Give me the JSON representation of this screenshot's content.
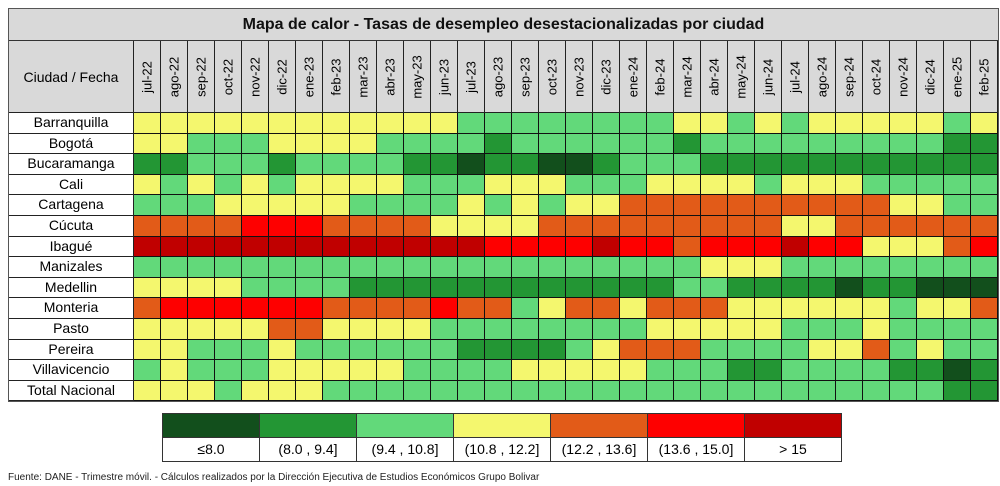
{
  "chart_data": {
    "type": "heatmap",
    "title": "Mapa de calor - Tasas de desempleo desestacionalizadas por ciudad",
    "corner_label": "Ciudad / Fecha",
    "columns": [
      "jul-22",
      "ago-22",
      "sep-22",
      "oct-22",
      "nov-22",
      "dic-22",
      "ene-23",
      "feb-23",
      "mar-23",
      "abr-23",
      "may-23",
      "jun-23",
      "jul-23",
      "ago-23",
      "sep-23",
      "oct-23",
      "nov-23",
      "dic-23",
      "ene-24",
      "feb-24",
      "mar-24",
      "abr-24",
      "may-24",
      "jun-24",
      "jul-24",
      "ago-24",
      "sep-24",
      "oct-24",
      "nov-24",
      "dic-24",
      "ene-25",
      "feb-25"
    ],
    "legend": [
      {
        "label": "≤8.0",
        "color": "#124f1c"
      },
      {
        "label": "(8.0 , 9.4]",
        "color": "#239634"
      },
      {
        "label": "(9.4 , 10.8]",
        "color": "#62d97a"
      },
      {
        "label": "(10.8 , 12.2]",
        "color": "#f4f76e"
      },
      {
        "label": "(12.2 , 13.6]",
        "color": "#e25b18"
      },
      {
        "label": "(13.6 , 15.0]",
        "color": "#fe0000"
      },
      {
        "label": "> 15",
        "color": "#c00000"
      }
    ],
    "rows": [
      {
        "city": "Barranquilla",
        "levels": [
          3,
          3,
          3,
          3,
          3,
          3,
          3,
          3,
          3,
          3,
          3,
          3,
          2,
          2,
          2,
          2,
          2,
          2,
          2,
          2,
          3,
          3,
          2,
          3,
          2,
          3,
          3,
          3,
          3,
          3,
          2,
          3
        ]
      },
      {
        "city": "Bogotá",
        "levels": [
          3,
          3,
          2,
          2,
          2,
          3,
          3,
          3,
          3,
          2,
          2,
          2,
          2,
          1,
          2,
          2,
          2,
          2,
          2,
          2,
          1,
          2,
          2,
          2,
          2,
          2,
          2,
          2,
          2,
          2,
          1,
          1
        ]
      },
      {
        "city": "Bucaramanga",
        "levels": [
          1,
          1,
          2,
          2,
          2,
          1,
          2,
          2,
          2,
          2,
          1,
          1,
          0,
          1,
          1,
          0,
          0,
          1,
          2,
          2,
          2,
          1,
          1,
          1,
          1,
          1,
          1,
          1,
          1,
          1,
          1,
          1
        ]
      },
      {
        "city": "Cali",
        "levels": [
          3,
          2,
          3,
          2,
          3,
          2,
          3,
          3,
          3,
          3,
          2,
          2,
          2,
          3,
          3,
          3,
          2,
          2,
          2,
          3,
          3,
          3,
          3,
          2,
          3,
          3,
          3,
          2,
          2,
          2,
          2,
          2
        ]
      },
      {
        "city": "Cartagena",
        "levels": [
          2,
          2,
          2,
          3,
          3,
          3,
          3,
          3,
          2,
          2,
          2,
          2,
          3,
          2,
          3,
          2,
          3,
          3,
          4,
          4,
          4,
          4,
          4,
          4,
          4,
          4,
          4,
          4,
          3,
          3,
          2,
          2
        ]
      },
      {
        "city": "Cúcuta",
        "levels": [
          4,
          4,
          4,
          4,
          5,
          5,
          5,
          4,
          4,
          4,
          4,
          3,
          3,
          3,
          3,
          4,
          4,
          4,
          4,
          4,
          4,
          4,
          4,
          4,
          3,
          3,
          4,
          4,
          4,
          4,
          4,
          4
        ]
      },
      {
        "city": "Ibagué",
        "levels": [
          6,
          6,
          6,
          6,
          6,
          6,
          6,
          6,
          6,
          6,
          6,
          6,
          6,
          5,
          5,
          5,
          5,
          6,
          5,
          5,
          4,
          5,
          5,
          5,
          6,
          5,
          5,
          3,
          3,
          3,
          4,
          5
        ]
      },
      {
        "city": "Manizales",
        "levels": [
          2,
          2,
          2,
          2,
          2,
          2,
          2,
          2,
          2,
          2,
          2,
          2,
          2,
          2,
          2,
          2,
          2,
          2,
          2,
          2,
          2,
          3,
          3,
          3,
          2,
          2,
          2,
          2,
          2,
          2,
          2,
          2
        ]
      },
      {
        "city": "Medellin",
        "levels": [
          3,
          3,
          3,
          3,
          2,
          2,
          2,
          2,
          1,
          1,
          1,
          1,
          1,
          1,
          1,
          1,
          1,
          1,
          1,
          1,
          2,
          2,
          1,
          1,
          1,
          1,
          0,
          1,
          1,
          0,
          0,
          0
        ]
      },
      {
        "city": "Monteria",
        "levels": [
          4,
          5,
          5,
          5,
          5,
          5,
          5,
          4,
          4,
          4,
          4,
          5,
          4,
          4,
          2,
          3,
          4,
          4,
          3,
          4,
          4,
          4,
          3,
          3,
          3,
          3,
          3,
          3,
          2,
          3,
          3,
          4
        ]
      },
      {
        "city": "Pasto",
        "levels": [
          3,
          3,
          3,
          3,
          3,
          4,
          4,
          3,
          3,
          3,
          3,
          2,
          2,
          2,
          2,
          2,
          2,
          2,
          2,
          3,
          3,
          3,
          3,
          3,
          2,
          2,
          2,
          3,
          2,
          2,
          2,
          2
        ]
      },
      {
        "city": "Pereira",
        "levels": [
          3,
          3,
          2,
          2,
          2,
          3,
          2,
          2,
          2,
          2,
          2,
          2,
          1,
          1,
          1,
          1,
          2,
          3,
          4,
          4,
          4,
          2,
          2,
          2,
          2,
          3,
          3,
          4,
          2,
          3,
          2,
          2
        ]
      },
      {
        "city": "Villavicencio",
        "levels": [
          2,
          3,
          2,
          2,
          2,
          3,
          3,
          3,
          3,
          3,
          2,
          2,
          2,
          2,
          3,
          3,
          3,
          3,
          3,
          2,
          2,
          2,
          1,
          1,
          2,
          2,
          2,
          2,
          1,
          1,
          0,
          1
        ]
      },
      {
        "city": "Total Nacional",
        "levels": [
          3,
          3,
          3,
          2,
          3,
          3,
          3,
          2,
          2,
          2,
          2,
          2,
          2,
          2,
          2,
          2,
          2,
          2,
          2,
          2,
          2,
          2,
          2,
          2,
          2,
          2,
          2,
          2,
          2,
          2,
          1,
          1
        ]
      }
    ]
  },
  "footer": "Fuente: DANE - Trimestre móvil. - Cálculos realizados por la Dirección Ejecutiva de Estudios Económicos Grupo Bolivar"
}
